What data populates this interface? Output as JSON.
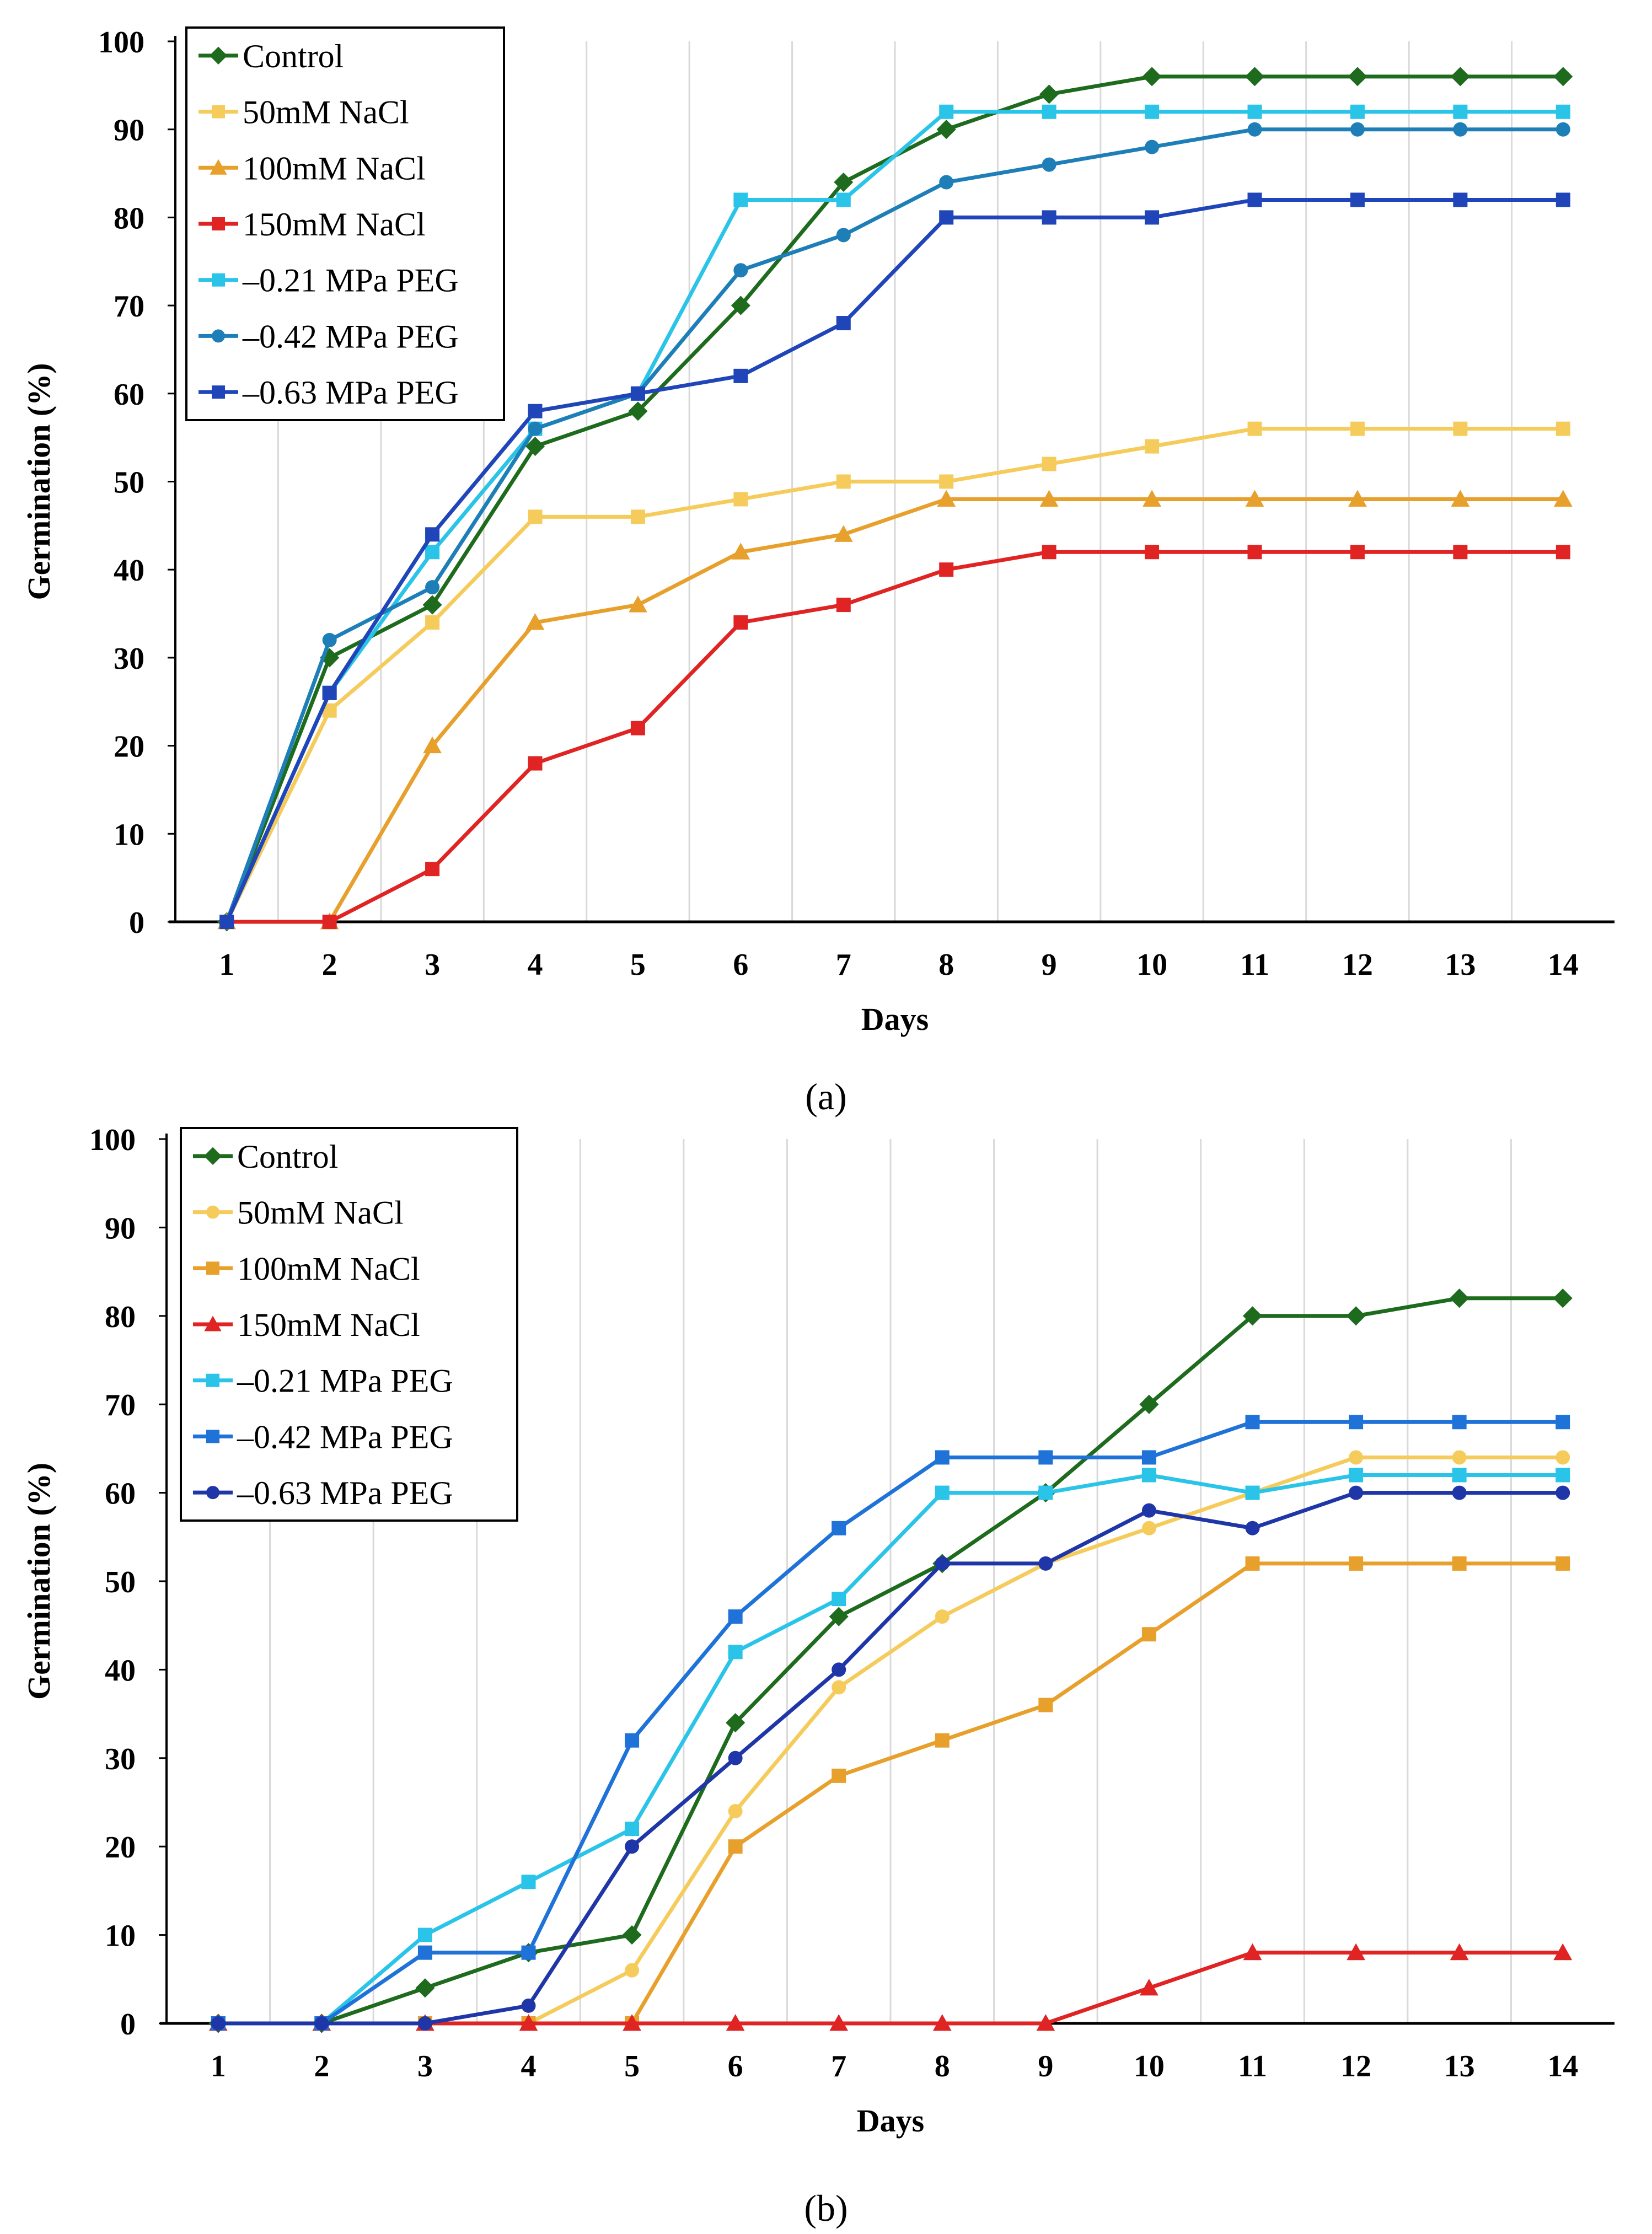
{
  "figure": {
    "panel_labels": [
      "(a)",
      "(b)"
    ]
  },
  "chart_data": [
    {
      "type": "line",
      "panel": "(a)",
      "xlabel": "Days",
      "ylabel": "Germination (%)",
      "ylim": [
        0,
        100
      ],
      "yticks": [
        0,
        10,
        20,
        30,
        40,
        50,
        60,
        70,
        80,
        90,
        100
      ],
      "categories": [
        "1",
        "2",
        "3",
        "4",
        "5",
        "6",
        "7",
        "8",
        "9",
        "10",
        "11",
        "12",
        "13",
        "14"
      ],
      "grid": "vertical",
      "legend_position": "top-left",
      "series": [
        {
          "name": "Control",
          "color": "#1E6B1E",
          "marker": "diamond",
          "values": [
            0,
            30,
            36,
            54,
            58,
            70,
            84,
            90,
            94,
            96,
            96,
            96,
            96,
            96
          ]
        },
        {
          "name": "50mM NaCl",
          "color": "#F5CC5C",
          "marker": "square",
          "values": [
            0,
            24,
            34,
            46,
            46,
            48,
            50,
            50,
            52,
            54,
            56,
            56,
            56,
            56
          ]
        },
        {
          "name": "100mM NaCl",
          "color": "#E8A02C",
          "marker": "triangle",
          "values": [
            0,
            0,
            20,
            34,
            36,
            42,
            44,
            48,
            48,
            48,
            48,
            48,
            48,
            48
          ]
        },
        {
          "name": "150mM NaCl",
          "color": "#E02424",
          "marker": "square",
          "values": [
            0,
            0,
            6,
            18,
            22,
            34,
            36,
            40,
            42,
            42,
            42,
            42,
            42,
            42
          ]
        },
        {
          "name": "–0.21 MPa PEG",
          "color": "#29C4E8",
          "marker": "square",
          "values": [
            0,
            26,
            42,
            56,
            60,
            82,
            82,
            92,
            92,
            92,
            92,
            92,
            92,
            92
          ]
        },
        {
          "name": "–0.42 MPa PEG",
          "color": "#1E7FB8",
          "marker": "circle",
          "values": [
            0,
            32,
            38,
            56,
            60,
            74,
            78,
            84,
            86,
            88,
            90,
            90,
            90,
            90
          ]
        },
        {
          "name": "–0.63 MPa PEG",
          "color": "#1F45B8",
          "marker": "square",
          "values": [
            0,
            26,
            44,
            58,
            60,
            62,
            68,
            80,
            80,
            80,
            82,
            82,
            82,
            82
          ]
        }
      ]
    },
    {
      "type": "line",
      "panel": "(b)",
      "xlabel": "Days",
      "ylabel": "Germination (%)",
      "ylim": [
        0,
        100
      ],
      "yticks": [
        0,
        10,
        20,
        30,
        40,
        50,
        60,
        70,
        80,
        90,
        100
      ],
      "categories": [
        "1",
        "2",
        "3",
        "4",
        "5",
        "6",
        "7",
        "8",
        "9",
        "10",
        "11",
        "12",
        "13",
        "14"
      ],
      "grid": "vertical",
      "legend_position": "top-left",
      "series": [
        {
          "name": "Control",
          "color": "#1E6B1E",
          "marker": "diamond",
          "values": [
            0,
            0,
            4,
            8,
            10,
            34,
            46,
            52,
            60,
            70,
            80,
            80,
            82,
            82
          ]
        },
        {
          "name": "50mM NaCl",
          "color": "#F5CC5C",
          "marker": "circle",
          "values": [
            0,
            0,
            0,
            0,
            6,
            24,
            38,
            46,
            52,
            56,
            60,
            64,
            64,
            64
          ]
        },
        {
          "name": "100mM NaCl",
          "color": "#E8A02C",
          "marker": "square",
          "values": [
            0,
            0,
            0,
            0,
            0,
            20,
            28,
            32,
            36,
            44,
            52,
            52,
            52,
            52
          ]
        },
        {
          "name": "150mM NaCl",
          "color": "#E02424",
          "marker": "triangle",
          "values": [
            0,
            0,
            0,
            0,
            0,
            0,
            0,
            0,
            0,
            4,
            8,
            8,
            8,
            8
          ]
        },
        {
          "name": "–0.21 MPa PEG",
          "color": "#29C4E8",
          "marker": "square",
          "values": [
            0,
            0,
            10,
            16,
            22,
            42,
            48,
            60,
            60,
            62,
            60,
            62,
            62,
            62
          ]
        },
        {
          "name": "–0.42 MPa PEG",
          "color": "#1F72D8",
          "marker": "square",
          "values": [
            0,
            0,
            8,
            8,
            32,
            46,
            56,
            64,
            64,
            64,
            68,
            68,
            68,
            68
          ]
        },
        {
          "name": "–0.63 MPa PEG",
          "color": "#1F36A8",
          "marker": "circle",
          "values": [
            0,
            0,
            0,
            2,
            20,
            30,
            40,
            52,
            52,
            58,
            56,
            60,
            60,
            60
          ]
        }
      ]
    }
  ]
}
